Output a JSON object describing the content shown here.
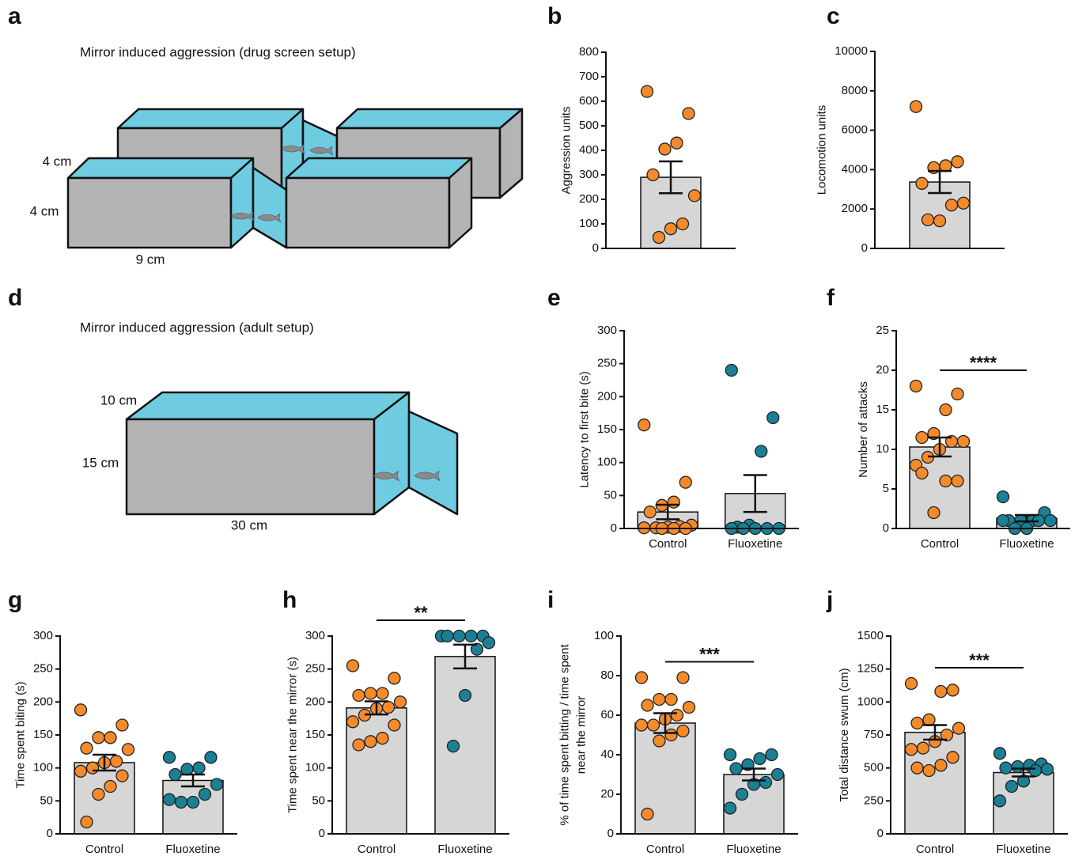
{
  "diagrams": [
    {
      "letter": "a",
      "title": "Mirror induced aggression (drug screen setup)",
      "labels": [
        "4 cm",
        "4 cm",
        "9 cm"
      ]
    },
    {
      "letter": "d",
      "title": "Mirror induced aggression (adult setup)",
      "labels": [
        "10 cm",
        "15 cm",
        "30 cm"
      ]
    }
  ],
  "chart_data": [
    {
      "type": "bar",
      "panel": "b",
      "ylabel": [
        "Aggression units"
      ],
      "categories": [
        null
      ],
      "values": [
        290
      ],
      "errors": [
        65
      ],
      "points": [
        [
          640,
          550,
          430,
          405,
          300,
          215,
          100,
          80,
          45
        ]
      ],
      "colors": [
        "#f58a2b"
      ],
      "bar_color": "#d6d6d6",
      "ylim": [
        0,
        800
      ],
      "yticks": [
        0,
        100,
        200,
        300,
        400,
        500,
        600,
        700,
        800
      ]
    },
    {
      "type": "bar",
      "panel": "c",
      "ylabel": [
        "Locomotion units"
      ],
      "categories": [
        null
      ],
      "values": [
        3370
      ],
      "errors": [
        560
      ],
      "points": [
        [
          7200,
          4400,
          4200,
          4100,
          3300,
          2300,
          2200,
          1400,
          1450
        ]
      ],
      "colors": [
        "#f58a2b"
      ],
      "bar_color": "#d6d6d6",
      "ylim": [
        0,
        10000
      ],
      "yticks": [
        0,
        2000,
        4000,
        6000,
        8000,
        10000
      ]
    },
    {
      "type": "bar",
      "panel": "e",
      "ylabel": [
        "Latency to first bite (s)"
      ],
      "categories": [
        "Control",
        "Fluoxetine"
      ],
      "values": [
        25,
        53
      ],
      "errors": [
        11,
        28
      ],
      "points": [
        [
          157,
          70,
          40,
          35,
          25,
          5,
          3,
          2,
          1,
          1,
          0,
          0,
          0
        ],
        [
          240,
          168,
          117,
          5,
          2,
          0,
          0,
          0,
          0,
          0
        ]
      ],
      "colors": [
        "#f58a2b",
        "#1b8096"
      ],
      "bar_color": "#d6d6d6",
      "ylim": [
        0,
        300
      ],
      "yticks": [
        0,
        50,
        100,
        150,
        200,
        250,
        300
      ]
    },
    {
      "type": "bar",
      "panel": "f",
      "ylabel": [
        "Number of attacks"
      ],
      "categories": [
        "Control",
        "Fluoxetine"
      ],
      "values": [
        10.3,
        1.3
      ],
      "errors": [
        1.2,
        0.4
      ],
      "points": [
        [
          18,
          17,
          15,
          12,
          11.5,
          11,
          11,
          10,
          9,
          8,
          6,
          6,
          2,
          7
        ],
        [
          4,
          2,
          1,
          1,
          1,
          1,
          1,
          0,
          0,
          1
        ]
      ],
      "colors": [
        "#f58a2b",
        "#1b8096"
      ],
      "bar_color": "#d6d6d6",
      "ylim": [
        0,
        25
      ],
      "yticks": [
        0,
        5,
        10,
        15,
        20,
        25
      ],
      "significance": "****"
    },
    {
      "type": "bar",
      "panel": "g",
      "ylabel": [
        "Time spent biting (s)"
      ],
      "categories": [
        "Control",
        "Fluoxetine"
      ],
      "values": [
        108,
        81
      ],
      "errors": [
        12,
        9
      ],
      "points": [
        [
          188,
          165,
          146,
          146,
          130,
          128,
          110,
          108,
          100,
          95,
          88,
          72,
          60,
          18
        ],
        [
          116,
          116,
          100,
          98,
          90,
          75,
          60,
          48,
          48,
          52
        ]
      ],
      "colors": [
        "#f58a2b",
        "#1b8096"
      ],
      "bar_color": "#d6d6d6",
      "ylim": [
        0,
        300
      ],
      "yticks": [
        0,
        50,
        100,
        150,
        200,
        250,
        300
      ]
    },
    {
      "type": "bar",
      "panel": "h",
      "ylabel": [
        "Time spent near the mirror (s)"
      ],
      "categories": [
        "Control",
        "Fluoxetine"
      ],
      "values": [
        191,
        269
      ],
      "errors": [
        10,
        18
      ],
      "points": [
        [
          255,
          236,
          213,
          213,
          210,
          200,
          192,
          190,
          180,
          170,
          165,
          145,
          140,
          135
        ],
        [
          300,
          300,
          300,
          300,
          300,
          290,
          280,
          210,
          133
        ]
      ],
      "colors": [
        "#f58a2b",
        "#1b8096"
      ],
      "bar_color": "#d6d6d6",
      "ylim": [
        0,
        300
      ],
      "yticks": [
        0,
        50,
        100,
        150,
        200,
        250,
        300
      ],
      "significance": "**"
    },
    {
      "type": "bar",
      "panel": "i",
      "ylabel": [
        "% of time spent bitting / time spent",
        "near the mirror"
      ],
      "categories": [
        "Control",
        "Fluoxetine"
      ],
      "values": [
        56,
        30
      ],
      "errors": [
        5,
        3
      ],
      "points": [
        [
          79,
          79,
          68,
          68,
          65,
          64,
          60,
          58,
          55,
          55,
          52,
          50,
          47,
          10
        ],
        [
          40,
          40,
          38,
          35,
          33,
          30,
          26,
          25,
          20,
          13
        ]
      ],
      "colors": [
        "#f58a2b",
        "#1b8096"
      ],
      "bar_color": "#d6d6d6",
      "ylim": [
        0,
        100
      ],
      "yticks": [
        0,
        20,
        40,
        60,
        80,
        100
      ],
      "significance": "***"
    },
    {
      "type": "bar",
      "panel": "j",
      "ylabel": [
        "Total distance swum (cm)"
      ],
      "categories": [
        "Control",
        "Fluoxetine"
      ],
      "values": [
        770,
        465
      ],
      "errors": [
        55,
        30
      ],
      "points": [
        [
          1140,
          1090,
          1080,
          865,
          840,
          800,
          750,
          700,
          650,
          640,
          580,
          520,
          480,
          500
        ],
        [
          610,
          530,
          520,
          510,
          500,
          490,
          480,
          400,
          360,
          250
        ]
      ],
      "colors": [
        "#f58a2b",
        "#1b8096"
      ],
      "bar_color": "#d6d6d6",
      "ylim": [
        0,
        1500
      ],
      "yticks": [
        0,
        250,
        500,
        750,
        1000,
        1250,
        1500
      ],
      "significance": "***"
    }
  ]
}
